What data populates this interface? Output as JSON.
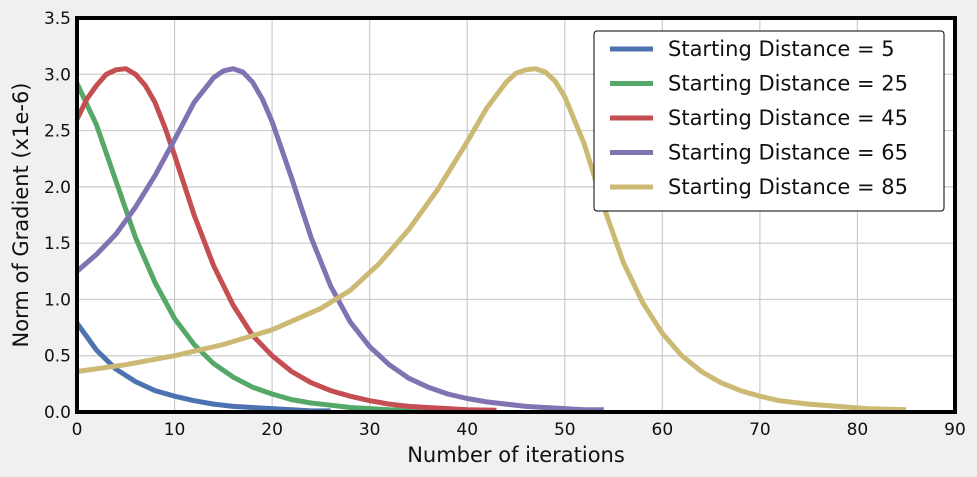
{
  "chart_data": {
    "type": "line",
    "xlabel": "Number of iterations",
    "ylabel": "Norm of Gradient (x1e-6)",
    "xlim": [
      0,
      90
    ],
    "ylim": [
      0,
      3.5
    ],
    "xticks": [
      "0",
      "10",
      "20",
      "30",
      "40",
      "50",
      "60",
      "70",
      "80",
      "90"
    ],
    "yticks": [
      "0.0",
      "0.5",
      "1.0",
      "1.5",
      "2.0",
      "2.5",
      "3.0",
      "3.5"
    ],
    "grid": true,
    "legend_position": "top-right",
    "series": [
      {
        "name": "Starting Distance = 5",
        "color": "#4c72b0",
        "x": [
          0,
          2,
          4,
          6,
          8,
          10,
          12,
          14,
          16,
          18,
          20,
          22,
          24,
          26
        ],
        "y": [
          0.79,
          0.55,
          0.38,
          0.27,
          0.19,
          0.14,
          0.1,
          0.07,
          0.05,
          0.04,
          0.03,
          0.02,
          0.01,
          0.01
        ]
      },
      {
        "name": "Starting Distance = 25",
        "color": "#55a868",
        "x": [
          0,
          2,
          4,
          6,
          8,
          10,
          12,
          14,
          16,
          18,
          20,
          22,
          24,
          26,
          28,
          30,
          32,
          34,
          36
        ],
        "y": [
          2.92,
          2.55,
          2.05,
          1.55,
          1.15,
          0.83,
          0.6,
          0.43,
          0.31,
          0.22,
          0.16,
          0.11,
          0.08,
          0.06,
          0.04,
          0.03,
          0.02,
          0.015,
          0.01
        ]
      },
      {
        "name": "Starting Distance = 45",
        "color": "#c44e52",
        "x": [
          0,
          1,
          2,
          3,
          4,
          5,
          6,
          7,
          8,
          9,
          10,
          12,
          14,
          16,
          18,
          20,
          22,
          24,
          26,
          28,
          30,
          32,
          34,
          36,
          38,
          40,
          43
        ],
        "y": [
          2.6,
          2.78,
          2.9,
          3.0,
          3.04,
          3.05,
          3.0,
          2.9,
          2.75,
          2.53,
          2.28,
          1.75,
          1.3,
          0.95,
          0.68,
          0.5,
          0.36,
          0.26,
          0.19,
          0.14,
          0.1,
          0.07,
          0.05,
          0.04,
          0.03,
          0.02,
          0.015
        ]
      },
      {
        "name": "Starting Distance = 65",
        "color": "#8172b2",
        "x": [
          0,
          2,
          4,
          6,
          8,
          10,
          12,
          14,
          15,
          16,
          17,
          18,
          19,
          20,
          22,
          24,
          26,
          28,
          30,
          32,
          34,
          36,
          38,
          40,
          42,
          44,
          46,
          48,
          50,
          52,
          54
        ],
        "y": [
          1.25,
          1.4,
          1.58,
          1.82,
          2.1,
          2.42,
          2.75,
          2.97,
          3.03,
          3.05,
          3.02,
          2.93,
          2.78,
          2.58,
          2.08,
          1.55,
          1.12,
          0.8,
          0.58,
          0.42,
          0.3,
          0.22,
          0.16,
          0.12,
          0.09,
          0.07,
          0.05,
          0.04,
          0.03,
          0.02,
          0.02
        ]
      },
      {
        "name": "Starting Distance = 85",
        "color": "#ccb974",
        "x": [
          0,
          5,
          10,
          15,
          20,
          25,
          28,
          31,
          34,
          37,
          40,
          42,
          44,
          45,
          46,
          47,
          48,
          49,
          50,
          52,
          54,
          56,
          58,
          60,
          62,
          64,
          66,
          68,
          70,
          72,
          75,
          78,
          81,
          85
        ],
        "y": [
          0.36,
          0.42,
          0.5,
          0.6,
          0.73,
          0.92,
          1.08,
          1.32,
          1.62,
          1.98,
          2.4,
          2.7,
          2.93,
          3.01,
          3.04,
          3.05,
          3.02,
          2.94,
          2.8,
          2.38,
          1.82,
          1.33,
          0.97,
          0.7,
          0.5,
          0.36,
          0.26,
          0.19,
          0.14,
          0.1,
          0.07,
          0.05,
          0.03,
          0.02
        ]
      }
    ]
  }
}
